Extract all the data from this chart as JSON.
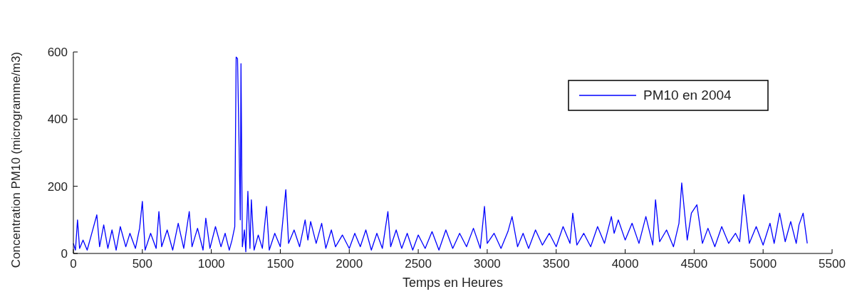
{
  "chart_data": {
    "type": "line",
    "xlabel": "Temps en Heures",
    "ylabel": "Concentration PM10 (microgramme/m3)",
    "xlim": [
      0,
      5500
    ],
    "ylim": [
      0,
      600
    ],
    "xticks": [
      0,
      500,
      1000,
      1500,
      2000,
      2500,
      3000,
      3500,
      4000,
      4500,
      5000,
      5500
    ],
    "yticks": [
      0,
      200,
      400,
      600
    ],
    "legend": "top right",
    "line_style": "solid",
    "grid": false,
    "series": [
      {
        "name": "PM10 en 2004",
        "color": "#0000ff",
        "x": [
          0,
          15,
          30,
          45,
          70,
          100,
          130,
          170,
          190,
          220,
          250,
          280,
          310,
          340,
          380,
          410,
          450,
          480,
          500,
          520,
          560,
          600,
          620,
          640,
          680,
          720,
          760,
          800,
          840,
          860,
          900,
          940,
          960,
          990,
          1030,
          1070,
          1100,
          1130,
          1150,
          1170,
          1180,
          1190,
          1200,
          1210,
          1215,
          1225,
          1240,
          1250,
          1265,
          1280,
          1290,
          1310,
          1340,
          1370,
          1400,
          1420,
          1460,
          1500,
          1540,
          1560,
          1600,
          1640,
          1680,
          1700,
          1720,
          1760,
          1800,
          1830,
          1870,
          1900,
          1950,
          2000,
          2040,
          2080,
          2120,
          2160,
          2200,
          2240,
          2280,
          2300,
          2340,
          2380,
          2420,
          2460,
          2500,
          2550,
          2600,
          2650,
          2700,
          2750,
          2800,
          2850,
          2900,
          2950,
          2980,
          3000,
          3050,
          3100,
          3150,
          3180,
          3220,
          3260,
          3300,
          3350,
          3400,
          3450,
          3500,
          3550,
          3600,
          3620,
          3650,
          3700,
          3750,
          3800,
          3850,
          3900,
          3920,
          3950,
          4000,
          4050,
          4100,
          4150,
          4200,
          4220,
          4250,
          4300,
          4350,
          4390,
          4410,
          4450,
          4480,
          4520,
          4560,
          4600,
          4650,
          4700,
          4750,
          4800,
          4830,
          4860,
          4900,
          4950,
          5000,
          5050,
          5080,
          5120,
          5160,
          5200,
          5240,
          5260,
          5290,
          5320
        ],
        "values": [
          30,
          10,
          100,
          15,
          40,
          10,
          55,
          115,
          20,
          85,
          15,
          70,
          10,
          80,
          20,
          60,
          15,
          75,
          155,
          10,
          60,
          15,
          125,
          20,
          70,
          10,
          90,
          15,
          125,
          20,
          75,
          10,
          105,
          15,
          80,
          20,
          60,
          10,
          40,
          80,
          585,
          580,
          350,
          100,
          565,
          20,
          70,
          5,
          185,
          15,
          160,
          10,
          55,
          15,
          140,
          10,
          60,
          20,
          190,
          30,
          70,
          20,
          100,
          40,
          95,
          30,
          90,
          15,
          70,
          20,
          55,
          15,
          60,
          20,
          70,
          10,
          60,
          15,
          125,
          20,
          70,
          15,
          60,
          10,
          55,
          15,
          65,
          10,
          70,
          15,
          60,
          20,
          75,
          15,
          140,
          30,
          60,
          15,
          65,
          110,
          20,
          60,
          15,
          70,
          25,
          60,
          20,
          80,
          30,
          120,
          25,
          60,
          20,
          80,
          30,
          110,
          60,
          100,
          40,
          90,
          30,
          110,
          25,
          160,
          35,
          70,
          20,
          90,
          210,
          40,
          120,
          145,
          30,
          75,
          20,
          80,
          30,
          60,
          35,
          175,
          30,
          80,
          25,
          90,
          30,
          120,
          35,
          95,
          30,
          85,
          120,
          30
        ]
      }
    ]
  }
}
